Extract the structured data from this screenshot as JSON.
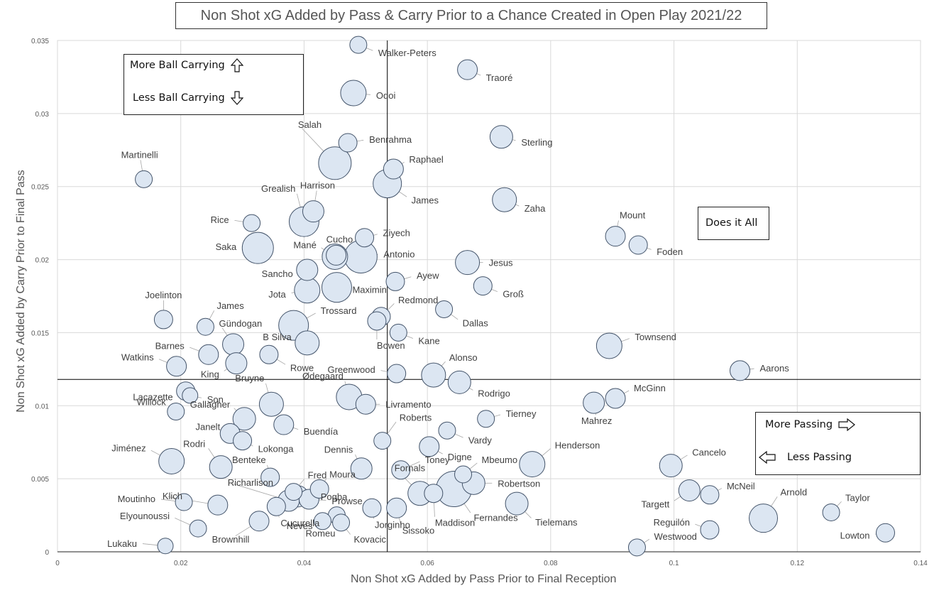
{
  "title": "Non Shot xG Added by Pass & Carry Prior to a Chance Created in  Open Play 2021/22",
  "chart_data": {
    "type": "scatter",
    "title": "Non Shot xG Added by Pass & Carry Prior to a Chance Created in  Open Play 2021/22",
    "xlabel": "Non Shot xG Added by Pass Prior to Final Reception",
    "ylabel": "Non Shot xG Added by Carry Prior to Final Pass",
    "xlim": [
      0,
      0.14
    ],
    "ylim": [
      0,
      0.035
    ],
    "x_ticks": [
      "0",
      "0.02",
      "0.04",
      "0.06",
      "0.08",
      "0.1",
      "0.12",
      "0.14"
    ],
    "y_ticks": [
      "0",
      "0.005",
      "0.01",
      "0.015",
      "0.02",
      "0.025",
      "0.03",
      "0.035"
    ],
    "grid": true,
    "quadrant_lines": {
      "x": 0.0535,
      "y": 0.0118
    },
    "marker_fill": "#dce6f2",
    "marker_stroke": "#44546a",
    "points": [
      {
        "name": "Walker-Peters",
        "x": 0.0488,
        "y": 0.0347,
        "size": 12
      },
      {
        "name": "Traoré",
        "x": 0.0665,
        "y": 0.033,
        "size": 14
      },
      {
        "name": "Odoi",
        "x": 0.048,
        "y": 0.0314,
        "size": 18
      },
      {
        "name": "Benrahma",
        "x": 0.0471,
        "y": 0.028,
        "size": 13
      },
      {
        "name": "Sterling",
        "x": 0.072,
        "y": 0.0284,
        "size": 16
      },
      {
        "name": "Martinelli",
        "x": 0.014,
        "y": 0.0255,
        "size": 12
      },
      {
        "name": "Salah",
        "x": 0.045,
        "y": 0.0266,
        "size": 23
      },
      {
        "name": "Raphael",
        "x": 0.0545,
        "y": 0.0262,
        "size": 14
      },
      {
        "name": "James",
        "x": 0.0535,
        "y": 0.0252,
        "size": 20
      },
      {
        "name": "Harrison",
        "x": 0.0415,
        "y": 0.0233,
        "size": 15
      },
      {
        "name": "Grealish",
        "x": 0.04,
        "y": 0.0226,
        "size": 21
      },
      {
        "name": "Zaha",
        "x": 0.0725,
        "y": 0.0241,
        "size": 17
      },
      {
        "name": "Rice",
        "x": 0.0315,
        "y": 0.0225,
        "size": 12
      },
      {
        "name": "Ziyech",
        "x": 0.0498,
        "y": 0.0215,
        "size": 13
      },
      {
        "name": "Mount",
        "x": 0.0905,
        "y": 0.0216,
        "size": 14
      },
      {
        "name": "Foden",
        "x": 0.0942,
        "y": 0.021,
        "size": 13
      },
      {
        "name": "Saka",
        "x": 0.0325,
        "y": 0.0208,
        "size": 22
      },
      {
        "name": "Cucho",
        "x": 0.0452,
        "y": 0.0203,
        "size": 14
      },
      {
        "name": "Mané",
        "x": 0.045,
        "y": 0.0202,
        "size": 18
      },
      {
        "name": "Antonio",
        "x": 0.0492,
        "y": 0.0202,
        "size": 23
      },
      {
        "name": "Sancho",
        "x": 0.0405,
        "y": 0.0193,
        "size": 15
      },
      {
        "name": "Jesus",
        "x": 0.0665,
        "y": 0.0198,
        "size": 17
      },
      {
        "name": "Ayew",
        "x": 0.0548,
        "y": 0.0185,
        "size": 13
      },
      {
        "name": "Maximin",
        "x": 0.0453,
        "y": 0.0181,
        "size": 21
      },
      {
        "name": "Jota",
        "x": 0.0405,
        "y": 0.0179,
        "size": 18
      },
      {
        "name": "Groß",
        "x": 0.069,
        "y": 0.0182,
        "size": 13
      },
      {
        "name": "Redmond",
        "x": 0.0525,
        "y": 0.0161,
        "size": 13
      },
      {
        "name": "Dallas",
        "x": 0.0627,
        "y": 0.0166,
        "size": 12
      },
      {
        "name": "Joelinton",
        "x": 0.0172,
        "y": 0.0159,
        "size": 13
      },
      {
        "name": "James",
        "x": 0.024,
        "y": 0.0154,
        "size": 12
      },
      {
        "name": "Trossard",
        "x": 0.0383,
        "y": 0.0155,
        "size": 21
      },
      {
        "name": "Bowen",
        "x": 0.0518,
        "y": 0.0158,
        "size": 13
      },
      {
        "name": "Kane",
        "x": 0.0553,
        "y": 0.015,
        "size": 12
      },
      {
        "name": "B Silva",
        "x": 0.0405,
        "y": 0.0143,
        "size": 17
      },
      {
        "name": "Gündogan",
        "x": 0.0285,
        "y": 0.0142,
        "size": 15
      },
      {
        "name": "Townsend",
        "x": 0.0895,
        "y": 0.0141,
        "size": 18
      },
      {
        "name": "Barnes",
        "x": 0.0245,
        "y": 0.0135,
        "size": 14
      },
      {
        "name": "Rowe",
        "x": 0.0343,
        "y": 0.0135,
        "size": 13
      },
      {
        "name": "King",
        "x": 0.029,
        "y": 0.0129,
        "size": 15
      },
      {
        "name": "Watkins",
        "x": 0.0193,
        "y": 0.0127,
        "size": 14
      },
      {
        "name": "Alonso",
        "x": 0.061,
        "y": 0.0121,
        "size": 17
      },
      {
        "name": "Greenwood",
        "x": 0.055,
        "y": 0.0122,
        "size": 13
      },
      {
        "name": "Aarons",
        "x": 0.1107,
        "y": 0.0124,
        "size": 14
      },
      {
        "name": "Rodrigo",
        "x": 0.0652,
        "y": 0.0116,
        "size": 16
      },
      {
        "name": "Lacazette",
        "x": 0.0208,
        "y": 0.011,
        "size": 13
      },
      {
        "name": "Son",
        "x": 0.0215,
        "y": 0.0107,
        "size": 11
      },
      {
        "name": "Ødegaard",
        "x": 0.0473,
        "y": 0.0106,
        "size": 18
      },
      {
        "name": "Livramento",
        "x": 0.05,
        "y": 0.0101,
        "size": 14
      },
      {
        "name": "Bruyne",
        "x": 0.0347,
        "y": 0.0101,
        "size": 17
      },
      {
        "name": "McGinn",
        "x": 0.0905,
        "y": 0.0105,
        "size": 14
      },
      {
        "name": "Mahrez",
        "x": 0.087,
        "y": 0.0102,
        "size": 15
      },
      {
        "name": "Willock",
        "x": 0.0192,
        "y": 0.0096,
        "size": 12
      },
      {
        "name": "Gallagher",
        "x": 0.0303,
        "y": 0.0091,
        "size": 16
      },
      {
        "name": "Tierney",
        "x": 0.0695,
        "y": 0.0091,
        "size": 12
      },
      {
        "name": "Buendía",
        "x": 0.0367,
        "y": 0.0087,
        "size": 14
      },
      {
        "name": "Vardy",
        "x": 0.0632,
        "y": 0.0083,
        "size": 12
      },
      {
        "name": "Janelt",
        "x": 0.028,
        "y": 0.0081,
        "size": 14
      },
      {
        "name": "Lokonga",
        "x": 0.03,
        "y": 0.0076,
        "size": 13
      },
      {
        "name": "Roberts",
        "x": 0.0527,
        "y": 0.0076,
        "size": 12
      },
      {
        "name": "Digne",
        "x": 0.0603,
        "y": 0.0072,
        "size": 14
      },
      {
        "name": "Jiménez",
        "x": 0.0185,
        "y": 0.0062,
        "size": 18
      },
      {
        "name": "Rodri",
        "x": 0.0265,
        "y": 0.0058,
        "size": 16
      },
      {
        "name": "Henderson",
        "x": 0.077,
        "y": 0.006,
        "size": 18
      },
      {
        "name": "Cancelo",
        "x": 0.0995,
        "y": 0.0059,
        "size": 16
      },
      {
        "name": "Dennis",
        "x": 0.0493,
        "y": 0.0057,
        "size": 15
      },
      {
        "name": "Toney",
        "x": 0.0557,
        "y": 0.0056,
        "size": 13
      },
      {
        "name": "Mbeumo",
        "x": 0.0658,
        "y": 0.0053,
        "size": 12
      },
      {
        "name": "Benteke",
        "x": 0.0345,
        "y": 0.0051,
        "size": 13
      },
      {
        "name": "Moura",
        "x": 0.0425,
        "y": 0.0043,
        "size": 13
      },
      {
        "name": "Robertson",
        "x": 0.0675,
        "y": 0.0047,
        "size": 16
      },
      {
        "name": "Fred",
        "x": 0.0383,
        "y": 0.0041,
        "size": 12
      },
      {
        "name": "McNeil",
        "x": 0.1058,
        "y": 0.0039,
        "size": 13
      },
      {
        "name": "Fornals",
        "x": 0.0588,
        "y": 0.004,
        "size": 17
      },
      {
        "name": "Fernandes",
        "x": 0.0643,
        "y": 0.0043,
        "size": 25
      },
      {
        "name": "Maddison",
        "x": 0.061,
        "y": 0.004,
        "size": 13
      },
      {
        "name": "Pogba",
        "x": 0.039,
        "y": 0.0038,
        "size": 15
      },
      {
        "name": "Targett",
        "x": 0.1025,
        "y": 0.0042,
        "size": 15
      },
      {
        "name": "Klich",
        "x": 0.026,
        "y": 0.0032,
        "size": 14
      },
      {
        "name": "Richarlison",
        "x": 0.0375,
        "y": 0.0035,
        "size": 15
      },
      {
        "name": "Prowse",
        "x": 0.0408,
        "y": 0.0036,
        "size": 14
      },
      {
        "name": "Moutinho",
        "x": 0.0205,
        "y": 0.0034,
        "size": 12
      },
      {
        "name": "Cucurella",
        "x": 0.0355,
        "y": 0.0031,
        "size": 13
      },
      {
        "name": "Tielemans",
        "x": 0.0745,
        "y": 0.0033,
        "size": 16
      },
      {
        "name": "Arnold",
        "x": 0.1145,
        "y": 0.0023,
        "size": 20
      },
      {
        "name": "Taylor",
        "x": 0.1255,
        "y": 0.0027,
        "size": 12
      },
      {
        "name": "Jorginho",
        "x": 0.051,
        "y": 0.003,
        "size": 13
      },
      {
        "name": "Sissoko",
        "x": 0.055,
        "y": 0.003,
        "size": 14
      },
      {
        "name": "Romeu",
        "x": 0.0453,
        "y": 0.0025,
        "size": 12
      },
      {
        "name": "Neves",
        "x": 0.043,
        "y": 0.0021,
        "size": 12
      },
      {
        "name": "Kovacic",
        "x": 0.046,
        "y": 0.002,
        "size": 12
      },
      {
        "name": "Brownhill",
        "x": 0.0327,
        "y": 0.0021,
        "size": 14
      },
      {
        "name": "Elyounoussi",
        "x": 0.0228,
        "y": 0.0016,
        "size": 12
      },
      {
        "name": "Reguilón",
        "x": 0.1058,
        "y": 0.0015,
        "size": 13
      },
      {
        "name": "Lowton",
        "x": 0.1343,
        "y": 0.0013,
        "size": 13
      },
      {
        "name": "Westwood",
        "x": 0.094,
        "y": 0.0003,
        "size": 12
      },
      {
        "name": "Lukaku",
        "x": 0.0175,
        "y": 0.0004,
        "size": 11
      }
    ],
    "annotations": [
      "More Ball Carrying",
      "Less Ball Carrying",
      "Does it All",
      "More Passing",
      "Less Passing"
    ]
  },
  "annotations": {
    "more_carry": "More Ball Carrying",
    "less_carry": "Less Ball Carrying",
    "does_it_all": "Does it All",
    "more_passing": "More Passing",
    "less_passing": "Less Passing"
  },
  "axes": {
    "xlabel": "Non Shot xG Added by Pass Prior to Final Reception",
    "ylabel": "Non Shot xG Added by Carry Prior to Final Pass"
  }
}
